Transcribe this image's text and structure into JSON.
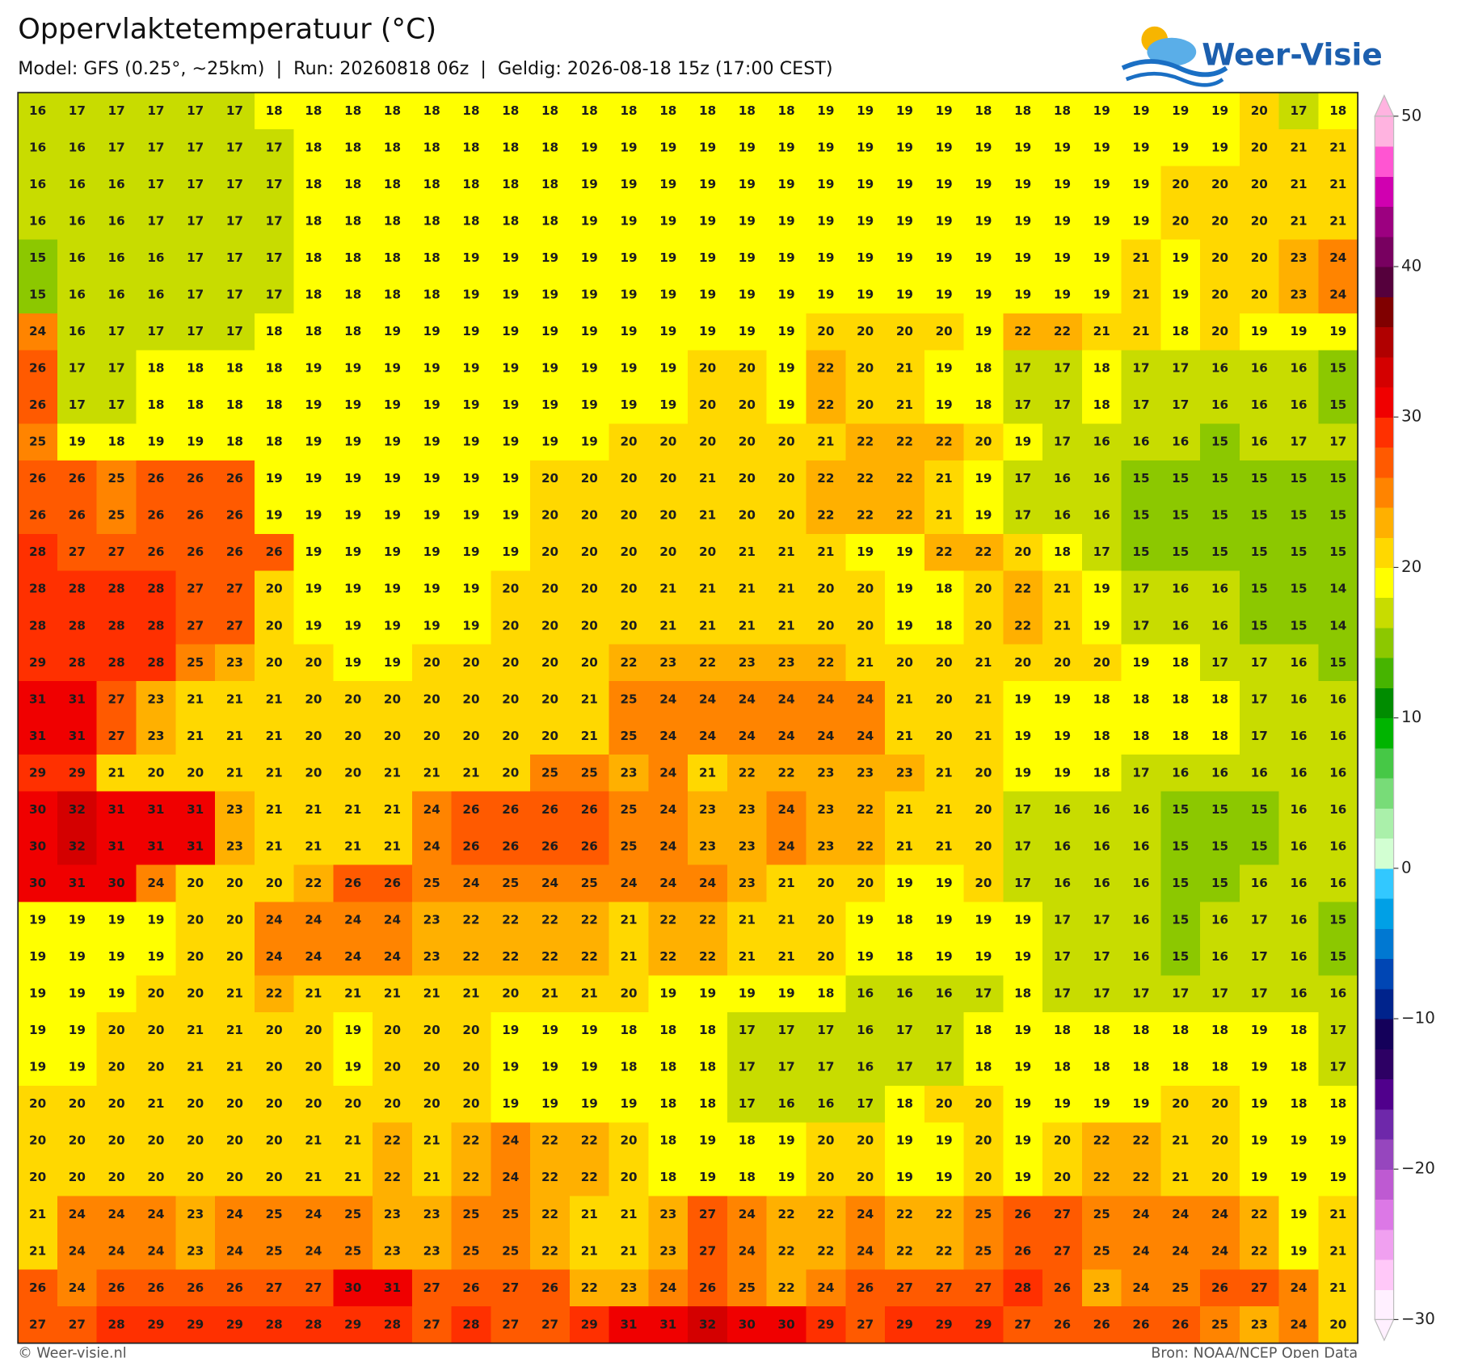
{
  "chart_data": {
    "type": "heatmap",
    "title": "Oppervlaktetemperatuur (°C)",
    "subtitle": "Model: GFS (0.25°, ~25km)  |  Run: 20260818 06z  |  Geldig: 2026-08-18 15z (17:00 CEST)",
    "brand": "Weer-Visie",
    "footer_left": "© Weer-visie.nl",
    "footer_right": "Bron: NOAA/NCEP Open Data",
    "clim": [
      -30,
      50
    ],
    "cticks": [
      {
        "value": -30,
        "label": "−30"
      },
      {
        "value": -20,
        "label": "−20"
      },
      {
        "value": -10,
        "label": "−10"
      },
      0,
      10,
      20,
      30,
      40,
      50
    ],
    "colors": [
      "#fff0ff",
      "#ffc8f8",
      "#f0a0f0",
      "#dc78e6",
      "#be5ad2",
      "#9646be",
      "#6e28aa",
      "#50008c",
      "#2d0064",
      "#14005a",
      "#00238c",
      "#0046b4",
      "#0078d2",
      "#00a0e6",
      "#32c8ff",
      "#d2ffd2",
      "#aaf0aa",
      "#78dc78",
      "#46c846",
      "#00b400",
      "#008c00",
      "#46b400",
      "#8cc800",
      "#c8dc00",
      "#ffff00",
      "#ffd800",
      "#ffb000",
      "#ff8400",
      "#ff5a00",
      "#ff3000",
      "#f00000",
      "#d40000",
      "#b00000",
      "#800000",
      "#55003c",
      "#780060",
      "#9c0080",
      "#d000b0",
      "#ff55d2",
      "#ffb3e0"
    ],
    "values": [
      [
        16,
        17,
        17,
        17,
        17,
        17,
        18,
        18,
        18,
        18,
        18,
        18,
        18,
        18,
        18,
        18,
        18,
        18,
        18,
        18,
        19,
        19,
        19,
        19,
        18,
        18,
        18,
        19,
        19,
        19,
        19,
        20,
        17,
        18
      ],
      [
        16,
        16,
        17,
        17,
        17,
        17,
        17,
        18,
        18,
        18,
        18,
        18,
        18,
        18,
        19,
        19,
        19,
        19,
        19,
        19,
        19,
        19,
        19,
        19,
        19,
        19,
        19,
        19,
        19,
        19,
        19,
        20,
        21,
        21
      ],
      [
        16,
        16,
        16,
        17,
        17,
        17,
        17,
        18,
        18,
        18,
        18,
        18,
        18,
        18,
        19,
        19,
        19,
        19,
        19,
        19,
        19,
        19,
        19,
        19,
        19,
        19,
        19,
        19,
        19,
        20,
        20,
        20,
        21,
        21
      ],
      [
        16,
        16,
        16,
        17,
        17,
        17,
        17,
        18,
        18,
        18,
        18,
        18,
        18,
        18,
        19,
        19,
        19,
        19,
        19,
        19,
        19,
        19,
        19,
        19,
        19,
        19,
        19,
        19,
        19,
        20,
        20,
        20,
        21,
        21
      ],
      [
        15,
        16,
        16,
        16,
        17,
        17,
        17,
        18,
        18,
        18,
        18,
        19,
        19,
        19,
        19,
        19,
        19,
        19,
        19,
        19,
        19,
        19,
        19,
        19,
        19,
        19,
        19,
        19,
        21,
        19,
        20,
        20,
        23,
        24
      ],
      [
        15,
        16,
        16,
        16,
        17,
        17,
        17,
        18,
        18,
        18,
        18,
        19,
        19,
        19,
        19,
        19,
        19,
        19,
        19,
        19,
        19,
        19,
        19,
        19,
        19,
        19,
        19,
        19,
        21,
        19,
        20,
        20,
        23,
        24
      ],
      [
        24,
        16,
        17,
        17,
        17,
        17,
        18,
        18,
        18,
        19,
        19,
        19,
        19,
        19,
        19,
        19,
        19,
        19,
        19,
        19,
        20,
        20,
        20,
        20,
        19,
        22,
        22,
        21,
        21,
        18,
        20,
        19,
        19,
        19
      ],
      [
        26,
        17,
        17,
        18,
        18,
        18,
        18,
        19,
        19,
        19,
        19,
        19,
        19,
        19,
        19,
        19,
        19,
        20,
        20,
        19,
        22,
        20,
        21,
        19,
        18,
        17,
        17,
        18,
        17,
        17,
        16,
        16,
        16,
        15
      ],
      [
        26,
        17,
        17,
        18,
        18,
        18,
        18,
        19,
        19,
        19,
        19,
        19,
        19,
        19,
        19,
        19,
        19,
        20,
        20,
        19,
        22,
        20,
        21,
        19,
        18,
        17,
        17,
        18,
        17,
        17,
        16,
        16,
        16,
        15
      ],
      [
        25,
        19,
        18,
        19,
        19,
        18,
        18,
        19,
        19,
        19,
        19,
        19,
        19,
        19,
        19,
        20,
        20,
        20,
        20,
        20,
        21,
        22,
        22,
        22,
        20,
        19,
        17,
        16,
        16,
        16,
        15,
        16,
        17,
        17
      ],
      [
        26,
        26,
        25,
        26,
        26,
        26,
        19,
        19,
        19,
        19,
        19,
        19,
        19,
        20,
        20,
        20,
        20,
        21,
        20,
        20,
        22,
        22,
        22,
        21,
        19,
        17,
        16,
        16,
        15,
        15,
        15,
        15,
        15,
        15
      ],
      [
        26,
        26,
        25,
        26,
        26,
        26,
        19,
        19,
        19,
        19,
        19,
        19,
        19,
        20,
        20,
        20,
        20,
        21,
        20,
        20,
        22,
        22,
        22,
        21,
        19,
        17,
        16,
        16,
        15,
        15,
        15,
        15,
        15,
        15
      ],
      [
        28,
        27,
        27,
        26,
        26,
        26,
        26,
        19,
        19,
        19,
        19,
        19,
        19,
        20,
        20,
        20,
        20,
        20,
        21,
        21,
        21,
        19,
        19,
        22,
        22,
        20,
        18,
        17,
        15,
        15,
        15,
        15,
        15,
        15
      ],
      [
        28,
        28,
        28,
        28,
        27,
        27,
        20,
        19,
        19,
        19,
        19,
        19,
        20,
        20,
        20,
        20,
        21,
        21,
        21,
        21,
        20,
        20,
        19,
        18,
        20,
        22,
        21,
        19,
        17,
        16,
        16,
        15,
        15,
        14
      ],
      [
        28,
        28,
        28,
        28,
        27,
        27,
        20,
        19,
        19,
        19,
        19,
        19,
        20,
        20,
        20,
        20,
        21,
        21,
        21,
        21,
        20,
        20,
        19,
        18,
        20,
        22,
        21,
        19,
        17,
        16,
        16,
        15,
        15,
        14
      ],
      [
        29,
        28,
        28,
        28,
        25,
        23,
        20,
        20,
        19,
        19,
        20,
        20,
        20,
        20,
        20,
        22,
        23,
        22,
        23,
        23,
        22,
        21,
        20,
        20,
        21,
        20,
        20,
        20,
        19,
        18,
        17,
        17,
        16,
        15
      ],
      [
        31,
        31,
        27,
        23,
        21,
        21,
        21,
        20,
        20,
        20,
        20,
        20,
        20,
        20,
        21,
        25,
        24,
        24,
        24,
        24,
        24,
        24,
        21,
        20,
        21,
        19,
        19,
        18,
        18,
        18,
        18,
        17,
        16,
        16
      ],
      [
        31,
        31,
        27,
        23,
        21,
        21,
        21,
        20,
        20,
        20,
        20,
        20,
        20,
        20,
        21,
        25,
        24,
        24,
        24,
        24,
        24,
        24,
        21,
        20,
        21,
        19,
        19,
        18,
        18,
        18,
        18,
        17,
        16,
        16
      ],
      [
        29,
        29,
        21,
        20,
        20,
        21,
        21,
        20,
        20,
        21,
        21,
        21,
        20,
        25,
        25,
        23,
        24,
        21,
        22,
        22,
        23,
        23,
        23,
        21,
        20,
        19,
        19,
        18,
        17,
        16,
        16,
        16,
        16,
        16
      ],
      [
        30,
        32,
        31,
        31,
        31,
        23,
        21,
        21,
        21,
        21,
        24,
        26,
        26,
        26,
        26,
        25,
        24,
        23,
        23,
        24,
        23,
        22,
        21,
        21,
        20,
        17,
        16,
        16,
        16,
        15,
        15,
        15,
        16,
        16
      ],
      [
        30,
        32,
        31,
        31,
        31,
        23,
        21,
        21,
        21,
        21,
        24,
        26,
        26,
        26,
        26,
        25,
        24,
        23,
        23,
        24,
        23,
        22,
        21,
        21,
        20,
        17,
        16,
        16,
        16,
        15,
        15,
        15,
        16,
        16
      ],
      [
        30,
        31,
        30,
        24,
        20,
        20,
        20,
        22,
        26,
        26,
        25,
        24,
        25,
        24,
        25,
        24,
        24,
        24,
        23,
        21,
        20,
        20,
        19,
        19,
        20,
        17,
        16,
        16,
        16,
        15,
        15,
        16,
        16,
        16
      ],
      [
        19,
        19,
        19,
        19,
        20,
        20,
        24,
        24,
        24,
        24,
        23,
        22,
        22,
        22,
        22,
        21,
        22,
        22,
        21,
        21,
        20,
        19,
        18,
        19,
        19,
        19,
        17,
        17,
        16,
        15,
        16,
        17,
        16,
        15
      ],
      [
        19,
        19,
        19,
        19,
        20,
        20,
        24,
        24,
        24,
        24,
        23,
        22,
        22,
        22,
        22,
        21,
        22,
        22,
        21,
        21,
        20,
        19,
        18,
        19,
        19,
        19,
        17,
        17,
        16,
        15,
        16,
        17,
        16,
        15
      ],
      [
        19,
        19,
        19,
        20,
        20,
        21,
        22,
        21,
        21,
        21,
        21,
        21,
        20,
        21,
        21,
        20,
        19,
        19,
        19,
        19,
        18,
        16,
        16,
        16,
        17,
        18,
        17,
        17,
        17,
        17,
        17,
        17,
        16,
        16
      ],
      [
        19,
        19,
        20,
        20,
        21,
        21,
        20,
        20,
        19,
        20,
        20,
        20,
        19,
        19,
        19,
        18,
        18,
        18,
        17,
        17,
        17,
        16,
        17,
        17,
        18,
        19,
        18,
        18,
        18,
        18,
        18,
        19,
        18,
        17
      ],
      [
        19,
        19,
        20,
        20,
        21,
        21,
        20,
        20,
        19,
        20,
        20,
        20,
        19,
        19,
        19,
        18,
        18,
        18,
        17,
        17,
        17,
        16,
        17,
        17,
        18,
        19,
        18,
        18,
        18,
        18,
        18,
        19,
        18,
        17
      ],
      [
        20,
        20,
        20,
        21,
        20,
        20,
        20,
        20,
        20,
        20,
        20,
        20,
        19,
        19,
        19,
        19,
        18,
        18,
        17,
        16,
        16,
        17,
        18,
        20,
        20,
        19,
        19,
        19,
        19,
        20,
        20,
        19,
        18,
        18
      ],
      [
        20,
        20,
        20,
        20,
        20,
        20,
        20,
        21,
        21,
        22,
        21,
        22,
        24,
        22,
        22,
        20,
        18,
        19,
        18,
        19,
        20,
        20,
        19,
        19,
        20,
        19,
        20,
        22,
        22,
        21,
        20,
        19,
        19,
        19
      ],
      [
        20,
        20,
        20,
        20,
        20,
        20,
        20,
        21,
        21,
        22,
        21,
        22,
        24,
        22,
        22,
        20,
        18,
        19,
        18,
        19,
        20,
        20,
        19,
        19,
        20,
        19,
        20,
        22,
        22,
        21,
        20,
        19,
        19,
        19
      ],
      [
        21,
        24,
        24,
        24,
        23,
        24,
        25,
        24,
        25,
        23,
        23,
        25,
        25,
        22,
        21,
        21,
        23,
        27,
        24,
        22,
        22,
        24,
        22,
        22,
        25,
        26,
        27,
        25,
        24,
        24,
        24,
        22,
        19,
        21
      ],
      [
        21,
        24,
        24,
        24,
        23,
        24,
        25,
        24,
        25,
        23,
        23,
        25,
        25,
        22,
        21,
        21,
        23,
        27,
        24,
        22,
        22,
        24,
        22,
        22,
        25,
        26,
        27,
        25,
        24,
        24,
        24,
        22,
        19,
        21
      ],
      [
        26,
        24,
        26,
        26,
        26,
        26,
        27,
        27,
        30,
        31,
        27,
        26,
        27,
        26,
        22,
        23,
        24,
        26,
        25,
        22,
        24,
        26,
        27,
        27,
        27,
        28,
        26,
        23,
        24,
        25,
        26,
        27,
        24,
        21
      ],
      [
        27,
        27,
        28,
        29,
        29,
        29,
        28,
        28,
        29,
        28,
        27,
        28,
        27,
        27,
        29,
        31,
        31,
        32,
        30,
        30,
        29,
        27,
        29,
        29,
        29,
        27,
        26,
        26,
        26,
        26,
        25,
        23,
        24,
        20
      ]
    ]
  }
}
